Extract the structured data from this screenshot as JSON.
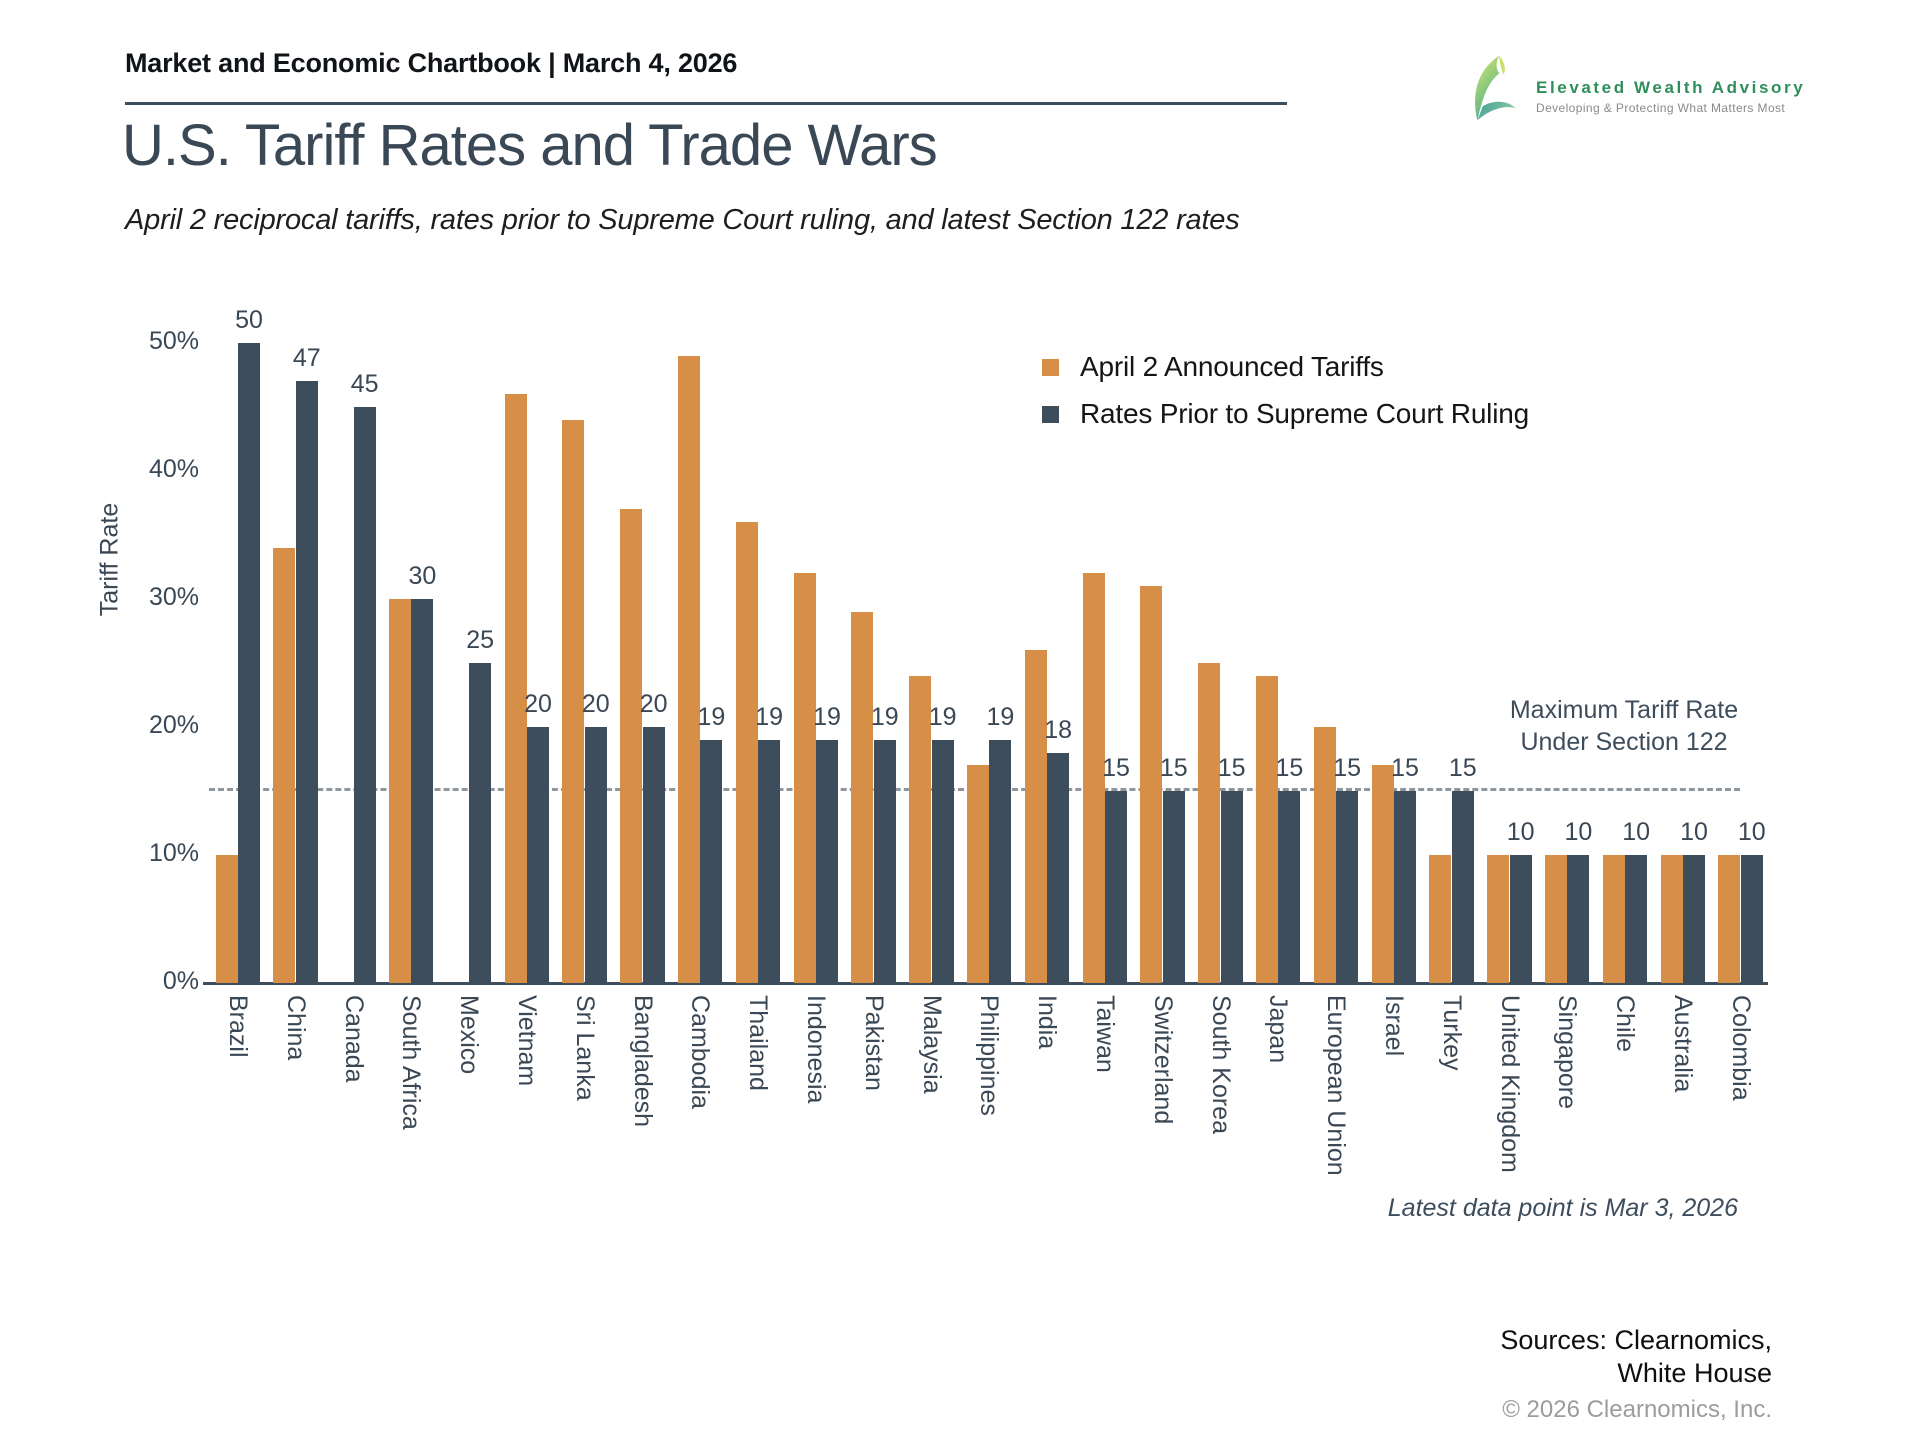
{
  "header": {
    "chartbook_title": "Market and Economic Chartbook | March 4, 2026",
    "logo": {
      "name": "Elevated Wealth Advisory",
      "tagline": "Developing & Protecting What Matters Most"
    }
  },
  "title": "U.S. Tariff Rates and Trade Wars",
  "subtitle": "April 2 reciprocal tariffs, rates prior to Supreme Court ruling, and latest Section 122 rates",
  "chart_data": {
    "type": "bar",
    "ylabel": "Tariff Rate",
    "ylim": [
      0,
      55
    ],
    "yticks": [
      {
        "value": 0,
        "label": "0%"
      },
      {
        "value": 10,
        "label": "10%"
      },
      {
        "value": 20,
        "label": "20%"
      },
      {
        "value": 30,
        "label": "30%"
      },
      {
        "value": 40,
        "label": "40%"
      },
      {
        "value": 50,
        "label": "50%"
      }
    ],
    "categories": [
      "Brazil",
      "China",
      "Canada",
      "South Africa",
      "Mexico",
      "Vietnam",
      "Sri Lanka",
      "Bangladesh",
      "Cambodia",
      "Thailand",
      "Indonesia",
      "Pakistan",
      "Malaysia",
      "Philippines",
      "India",
      "Taiwan",
      "Switzerland",
      "South Korea",
      "Japan",
      "European Union",
      "Israel",
      "Turkey",
      "United Kingdom",
      "Singapore",
      "Chile",
      "Australia",
      "Colombia"
    ],
    "series": [
      {
        "name": "April 2 Announced Tariffs",
        "color": "#D78E46",
        "values": [
          10,
          34,
          null,
          30,
          null,
          46,
          44,
          37,
          49,
          36,
          32,
          29,
          24,
          17,
          26,
          32,
          31,
          25,
          24,
          20,
          17,
          10,
          10,
          10,
          10,
          10,
          10
        ]
      },
      {
        "name": "Rates Prior to Supreme Court Ruling",
        "color": "#3E4D5C",
        "data_labels": true,
        "values": [
          50,
          47,
          45,
          30,
          25,
          20,
          20,
          20,
          19,
          19,
          19,
          19,
          19,
          19,
          18,
          15,
          15,
          15,
          15,
          15,
          15,
          15,
          10,
          10,
          10,
          10,
          10
        ]
      }
    ],
    "reference_line": {
      "value": 15,
      "label_line1": "Maximum Tariff Rate",
      "label_line2": "Under Section 122"
    },
    "legend_position": "upper right",
    "grid": false
  },
  "annotations": {
    "latest_data": "Latest data point is Mar 3, 2026"
  },
  "footer": {
    "sources_line1": "Sources: Clearnomics,",
    "sources_line2": "White House",
    "copyright": "© 2026 Clearnomics, Inc."
  },
  "colors": {
    "april2_bar": "#D78E46",
    "prior_bar": "#3E4D5C",
    "chart_text": "#3A4754",
    "dashed_line": "#8F979E",
    "logo_green": "#2F8F5B"
  }
}
